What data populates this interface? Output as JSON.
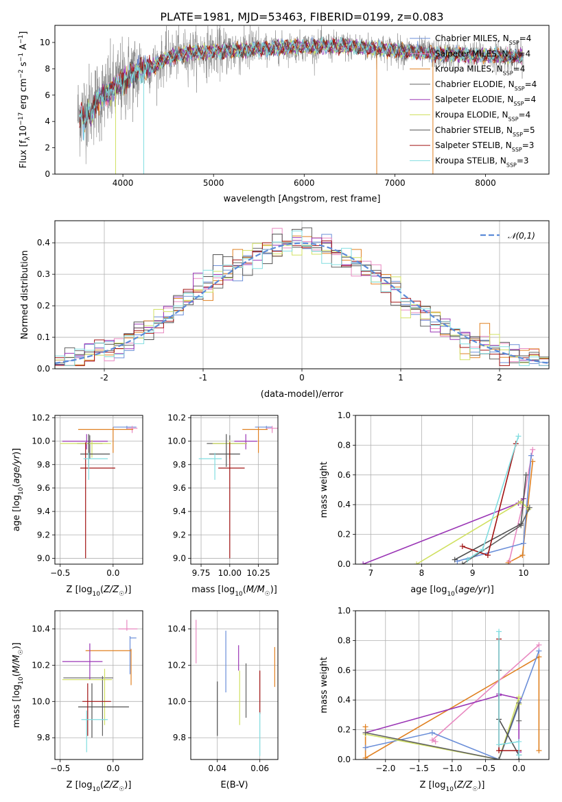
{
  "title": "PLATE=1981, MJD=53463, FIBERID=0199, z=0.083",
  "colors": {
    "Chabrier MILES": "#6a8ed8",
    "Salpeter MILES": "#e888c0",
    "Kroupa MILES": "#e08020",
    "Chabrier ELODIE": "#606060",
    "Salpeter ELODIE": "#9a35b5",
    "Kroupa ELODIE": "#d0e060",
    "Chabrier STELIB": "#505050",
    "Salpeter STELIB": "#a01010",
    "Kroupa STELIB": "#80dde0"
  },
  "legend_labels": [
    "Chabrier MILES, N",
    "Salpeter MILES, N",
    "Kroupa MILES, N",
    "Chabrier ELODIE, N",
    "Salpeter ELODIE, N",
    "Kroupa ELODIE, N",
    "Chabrier STELIB, N",
    "Salpeter STELIB, N",
    "Kroupa STELIB, N"
  ],
  "legend_sub": "SSP",
  "legend_vals": [
    "=4",
    "=4",
    "=4",
    "=4",
    "=4",
    "=4",
    "=5",
    "=3",
    "=3"
  ],
  "chart_data": [
    {
      "id": "spectrum",
      "type": "line",
      "title": "PLATE=1981, MJD=53463, FIBERID=0199, z=0.083",
      "xlabel": "wavelength [Angstrom, rest frame]",
      "ylabel": "Flux [fλ10⁻¹⁷ erg cm⁻² s⁻¹ A⁻¹]",
      "xlim": [
        3250,
        8700
      ],
      "ylim": [
        0,
        11.3
      ],
      "xticks": [
        4000,
        5000,
        6000,
        7000,
        8000
      ],
      "yticks": [
        0,
        2,
        4,
        6,
        8,
        10
      ],
      "x_range_data": [
        3500,
        8420
      ],
      "continuum": [
        [
          3500,
          4.5
        ],
        [
          3600,
          5.0
        ],
        [
          3700,
          5.5
        ],
        [
          3800,
          6.0
        ],
        [
          3900,
          6.5
        ],
        [
          4000,
          7.0
        ],
        [
          4100,
          7.6
        ],
        [
          4200,
          7.9
        ],
        [
          4300,
          8.1
        ],
        [
          4400,
          8.4
        ],
        [
          4500,
          8.9
        ],
        [
          4700,
          9.2
        ],
        [
          5000,
          9.3
        ],
        [
          5500,
          9.5
        ],
        [
          6000,
          9.7
        ],
        [
          6500,
          9.7
        ],
        [
          7000,
          9.4
        ],
        [
          7500,
          9.1
        ],
        [
          8000,
          9.0
        ],
        [
          8420,
          8.9
        ]
      ],
      "legend_placement": "right"
    },
    {
      "id": "residuals",
      "type": "histogram",
      "xlabel": "(data-model)/error",
      "ylabel": "Normed distribution",
      "xlim": [
        -2.5,
        2.5
      ],
      "ylim": [
        0,
        0.47
      ],
      "xticks": [
        -2,
        -1,
        0,
        1,
        2
      ],
      "yticks": [
        0.0,
        0.1,
        0.2,
        0.3,
        0.4
      ],
      "bin_width": 0.1,
      "reference_curve": "𝒩(0,1)",
      "legend_placement": "top-right"
    },
    {
      "id": "age_vs_Z",
      "type": "errorbar",
      "xlabel": "Z [log10(Z/Z☉)]",
      "ylabel": "age  [log10(age/yr)]",
      "xlim": [
        -0.55,
        0.28
      ],
      "ylim": [
        8.95,
        10.22
      ],
      "xticks": [
        -0.5,
        0.0
      ],
      "xticklabels": [
        "−0.5",
        "0.0"
      ],
      "yticks": [
        9.0,
        9.2,
        9.4,
        9.6,
        9.8,
        10.0,
        10.2
      ],
      "points": [
        {
          "model": "Chabrier MILES",
          "x": 0.13,
          "xerr": [
            0.13,
            0.09
          ],
          "y": 10.12,
          "yerr": [
            0.02,
            0.01
          ]
        },
        {
          "model": "Salpeter MILES",
          "x": 0.18,
          "xerr": [
            0.05,
            0.05
          ],
          "y": 10.11,
          "yerr": [
            0.04,
            0.02
          ]
        },
        {
          "model": "Kroupa MILES",
          "x": 0.0,
          "xerr": [
            0.33,
            0.19
          ],
          "y": 10.1,
          "yerr": [
            0.2,
            0.02
          ]
        },
        {
          "model": "Chabrier ELODIE",
          "x": -0.22,
          "xerr": [
            0.12,
            0.12
          ],
          "y": 9.98,
          "yerr": [
            0.13,
            0.07
          ]
        },
        {
          "model": "Salpeter ELODIE",
          "x": -0.25,
          "xerr": [
            0.23,
            0.2
          ],
          "y": 10.0,
          "yerr": [
            0.07,
            0.06
          ]
        },
        {
          "model": "Kroupa ELODIE",
          "x": -0.2,
          "xerr": [
            0.3,
            0.18
          ],
          "y": 9.98,
          "yerr": [
            0.12,
            0.03
          ]
        },
        {
          "model": "Chabrier STELIB",
          "x": -0.23,
          "xerr": [
            0.08,
            0.2
          ],
          "y": 9.89,
          "yerr": [
            0.11,
            0.17
          ]
        },
        {
          "model": "Salpeter STELIB",
          "x": -0.26,
          "xerr": [
            0.05,
            0.28
          ],
          "y": 9.77,
          "yerr": [
            0.77,
            0.22
          ]
        },
        {
          "model": "Kroupa STELIB",
          "x": -0.23,
          "xerr": [
            0.05,
            0.18
          ],
          "y": 9.85,
          "yerr": [
            0.18,
            0.05
          ]
        }
      ]
    },
    {
      "id": "age_vs_mass",
      "type": "errorbar",
      "xlabel": "mass [log10(M/M☉)]",
      "ylabel": "",
      "xlim": [
        9.66,
        10.42
      ],
      "ylim": [
        8.95,
        10.22
      ],
      "xticks": [
        9.75,
        10.0,
        10.25
      ],
      "xticklabels": [
        "9.75",
        "10.00",
        "10.25"
      ],
      "yticks": [
        9.0,
        9.2,
        9.4,
        9.6,
        9.8,
        10.0,
        10.2
      ],
      "points": [
        {
          "model": "Chabrier MILES",
          "x": 10.32,
          "xerr": [
            0.1,
            0.05
          ],
          "y": 10.12,
          "yerr": [
            0.02,
            0.01
          ]
        },
        {
          "model": "Salpeter MILES",
          "x": 10.37,
          "xerr": [
            0.05,
            0.05
          ],
          "y": 10.11,
          "yerr": [
            0.04,
            0.02
          ]
        },
        {
          "model": "Kroupa MILES",
          "x": 10.25,
          "xerr": [
            0.14,
            0.08
          ],
          "y": 10.1,
          "yerr": [
            0.2,
            0.02
          ]
        },
        {
          "model": "Chabrier ELODIE",
          "x": 10.0,
          "xerr": [
            0.2,
            0.15
          ],
          "y": 9.98,
          "yerr": [
            0.13,
            0.07
          ]
        },
        {
          "model": "Salpeter ELODIE",
          "x": 10.14,
          "xerr": [
            0.1,
            0.1
          ],
          "y": 10.0,
          "yerr": [
            0.07,
            0.06
          ]
        },
        {
          "model": "Kroupa ELODIE",
          "x": 10.0,
          "xerr": [
            0.15,
            0.15
          ],
          "y": 9.98,
          "yerr": [
            0.12,
            0.03
          ]
        },
        {
          "model": "Chabrier STELIB",
          "x": 9.97,
          "xerr": [
            0.15,
            0.12
          ],
          "y": 9.89,
          "yerr": [
            0.11,
            0.17
          ]
        },
        {
          "model": "Salpeter STELIB",
          "x": 10.0,
          "xerr": [
            0.1,
            0.13
          ],
          "y": 9.77,
          "yerr": [
            0.77,
            0.22
          ]
        },
        {
          "model": "Kroupa STELIB",
          "x": 9.87,
          "xerr": [
            0.14,
            0.06
          ],
          "y": 9.85,
          "yerr": [
            0.18,
            0.05
          ]
        }
      ]
    },
    {
      "id": "weight_vs_age",
      "type": "line",
      "xlabel": "age  [log10(age/yr)]",
      "ylabel": "mass weight",
      "xlim": [
        6.7,
        10.5
      ],
      "ylim": [
        0,
        1.0
      ],
      "xticks": [
        7,
        8,
        9,
        10
      ],
      "yticks": [
        0.0,
        0.2,
        0.4,
        0.6,
        0.8,
        1.0
      ],
      "series": [
        {
          "model": "Kroupa MILES",
          "x": [
            9.7,
            9.98,
            10.18
          ],
          "y": [
            0.01,
            0.06,
            0.69
          ]
        },
        {
          "model": "Salpeter MILES",
          "x": [
            9.72,
            9.97,
            10.18
          ],
          "y": [
            0.02,
            0.38,
            0.77
          ]
        },
        {
          "model": "Chabrier MILES",
          "x": [
            8.7,
            10.0,
            10.15
          ],
          "y": [
            0.02,
            0.14,
            0.73
          ]
        },
        {
          "model": "Salpeter ELODIE",
          "x": [
            6.85,
            9.9,
            10.0
          ],
          "y": [
            0.0,
            0.41,
            0.44
          ]
        },
        {
          "model": "Kroupa ELODIE",
          "x": [
            7.9,
            9.95,
            10.1
          ],
          "y": [
            0.0,
            0.42,
            0.37
          ]
        },
        {
          "model": "Chabrier ELODIE",
          "x": [
            8.8,
            9.95,
            10.12
          ],
          "y": [
            0.0,
            0.26,
            0.38
          ]
        },
        {
          "model": "Chabrier STELIB",
          "x": [
            8.65,
            9.95,
            10.05
          ],
          "y": [
            0.03,
            0.27,
            0.6
          ]
        },
        {
          "model": "Salpeter STELIB",
          "x": [
            8.8,
            9.3,
            9.85
          ],
          "y": [
            0.12,
            0.06,
            0.81
          ]
        },
        {
          "model": "Kroupa STELIB",
          "x": [
            8.9,
            9.2,
            9.9
          ],
          "y": [
            0.03,
            0.1,
            0.86
          ]
        }
      ]
    },
    {
      "id": "mass_vs_Z",
      "type": "errorbar",
      "xlabel": "Z [log10(Z/Z☉)]",
      "ylabel": "mass [log10(M/M☉)]",
      "xlim": [
        -0.55,
        0.28
      ],
      "ylim": [
        9.68,
        10.5
      ],
      "xticks": [
        -0.5,
        0.0
      ],
      "xticklabels": [
        "−0.5",
        "0.0"
      ],
      "yticks": [
        9.8,
        10.0,
        10.2,
        10.4
      ],
      "points": [
        {
          "model": "Chabrier MILES",
          "x": 0.16,
          "xerr": [
            0.0,
            0.06
          ],
          "y": 10.35,
          "yerr": [
            0.2,
            0.01
          ]
        },
        {
          "model": "Salpeter MILES",
          "x": 0.13,
          "xerr": [
            0.08,
            0.1
          ],
          "y": 10.4,
          "yerr": [
            0.01,
            0.05
          ]
        },
        {
          "model": "Kroupa MILES",
          "x": 0.17,
          "xerr": [
            0.43,
            0.0
          ],
          "y": 10.28,
          "yerr": [
            0.19,
            0.01
          ]
        },
        {
          "model": "Chabrier ELODIE",
          "x": -0.1,
          "xerr": [
            0.37,
            0.1
          ],
          "y": 10.13,
          "yerr": [
            0.32,
            0.01
          ]
        },
        {
          "model": "Salpeter ELODIE",
          "x": -0.22,
          "xerr": [
            0.26,
            0.12
          ],
          "y": 10.22,
          "yerr": [
            0.1,
            0.1
          ]
        },
        {
          "model": "Kroupa ELODIE",
          "x": -0.08,
          "xerr": [
            0.4,
            0.07
          ],
          "y": 10.12,
          "yerr": [
            0.25,
            0.06
          ]
        },
        {
          "model": "Chabrier STELIB",
          "x": -0.2,
          "xerr": [
            0.13,
            0.35
          ],
          "y": 9.97,
          "yerr": [
            0.17,
            0.13
          ]
        },
        {
          "model": "Salpeter STELIB",
          "x": -0.24,
          "xerr": [
            0.05,
            0.22
          ],
          "y": 10.0,
          "yerr": [
            0.19,
            0.1
          ]
        },
        {
          "model": "Kroupa STELIB",
          "x": -0.25,
          "xerr": [
            0.05,
            0.2
          ],
          "y": 9.9,
          "yerr": [
            0.18,
            0.05
          ]
        }
      ]
    },
    {
      "id": "mass_vs_ebv",
      "type": "errorbar",
      "xlabel": "E(B-V)",
      "ylabel": "",
      "xlim": [
        0.0275,
        0.0685
      ],
      "ylim": [
        9.68,
        10.5
      ],
      "xticks": [
        0.04,
        0.06
      ],
      "xticklabels": [
        "0.04",
        "0.06"
      ],
      "yticks": [
        9.8,
        10.0,
        10.2,
        10.4
      ],
      "points": [
        {
          "model": "Salpeter MILES",
          "x": 0.03,
          "y": 10.33,
          "yerr": [
            0.12,
            0.12
          ]
        },
        {
          "model": "Chabrier STELIB",
          "x": 0.04,
          "y": 9.96,
          "yerr": [
            0.15,
            0.15
          ]
        },
        {
          "model": "Chabrier MILES",
          "x": 0.044,
          "y": 10.22,
          "yerr": [
            0.17,
            0.17
          ]
        },
        {
          "model": "Salpeter ELODIE",
          "x": 0.05,
          "y": 10.24,
          "yerr": [
            0.07,
            0.07
          ]
        },
        {
          "model": "Kroupa ELODIE",
          "x": 0.0505,
          "y": 10.02,
          "yerr": [
            0.15,
            0.15
          ]
        },
        {
          "model": "Chabrier ELODIE",
          "x": 0.0535,
          "y": 10.06,
          "yerr": [
            0.15,
            0.15
          ]
        },
        {
          "model": "Salpeter STELIB",
          "x": 0.06,
          "y": 10.05,
          "yerr": [
            0.12,
            0.12
          ]
        },
        {
          "model": "Kroupa STELIB",
          "x": 0.06,
          "y": 9.82,
          "yerr": [
            0.12,
            0.12
          ]
        },
        {
          "model": "Kroupa MILES",
          "x": 0.067,
          "y": 10.19,
          "yerr": [
            0.11,
            0.11
          ]
        }
      ]
    },
    {
      "id": "weight_vs_Z",
      "type": "line",
      "xlabel": "Z [log10(Z/Z☉)]",
      "ylabel": "mass weight",
      "xlim": [
        -2.45,
        0.45
      ],
      "ylim": [
        0,
        1.0
      ],
      "xticks": [
        -2.0,
        -1.5,
        -1.0,
        -0.5,
        0.0
      ],
      "xticklabels": [
        "−2.0",
        "−1.5",
        "−1.0",
        "−0.5",
        "0.0"
      ],
      "yticks": [
        0.0,
        0.2,
        0.4,
        0.6,
        0.8,
        1.0
      ],
      "series": [
        {
          "model": "Kroupa MILES",
          "x": [
            -2.3,
            -2.3,
            0.3,
            0.3
          ],
          "y": [
            0.22,
            0.01,
            0.69,
            0.06
          ]
        },
        {
          "model": "Salpeter MILES",
          "x": [
            -1.25,
            -1.3,
            0.3
          ],
          "y": [
            0.12,
            0.13,
            0.77
          ]
        },
        {
          "model": "Chabrier MILES",
          "x": [
            -2.3,
            -1.3,
            -0.3,
            0.3
          ],
          "y": [
            0.08,
            0.18,
            0.0,
            0.73
          ]
        },
        {
          "model": "Salpeter ELODIE",
          "x": [
            -2.3,
            -0.3,
            -0.3,
            0.0,
            0.0
          ],
          "y": [
            0.18,
            0.43,
            0.44,
            0.41,
            0.05
          ]
        },
        {
          "model": "Kroupa ELODIE",
          "x": [
            -2.3,
            -0.3,
            0.0,
            0.0
          ],
          "y": [
            0.17,
            0.0,
            0.42,
            0.37
          ]
        },
        {
          "model": "Chabrier ELODIE",
          "x": [
            -2.3,
            -0.3,
            0.0,
            0.0
          ],
          "y": [
            0.18,
            0.0,
            0.38,
            0.26
          ]
        },
        {
          "model": "Chabrier STELIB",
          "x": [
            -0.3,
            -0.3,
            0.0,
            0.0
          ],
          "y": [
            0.6,
            0.27,
            0.03,
            0.0
          ]
        },
        {
          "model": "Salpeter STELIB",
          "x": [
            -0.3,
            -0.3,
            0.0
          ],
          "y": [
            0.81,
            0.06,
            0.06
          ]
        },
        {
          "model": "Kroupa STELIB",
          "x": [
            -0.3,
            -0.3,
            0.0,
            0.0
          ],
          "y": [
            0.86,
            0.1,
            0.12,
            0.03
          ]
        }
      ]
    }
  ]
}
